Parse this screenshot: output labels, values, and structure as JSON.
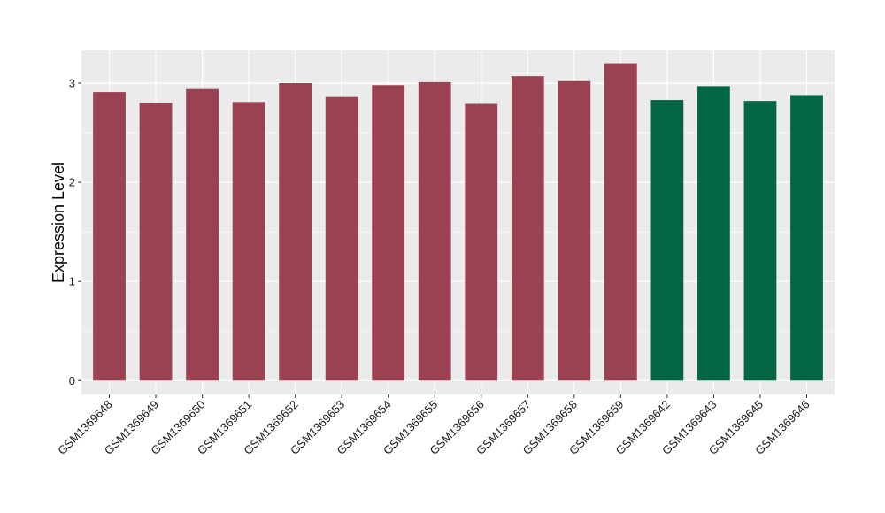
{
  "chart_data": {
    "type": "bar",
    "title": "",
    "xlabel": "",
    "ylabel": "Expression Level",
    "ylim": [
      -0.14,
      3.33
    ],
    "yticks": [
      0,
      1,
      2,
      3
    ],
    "grid": true,
    "legend": "none",
    "categories": [
      "GSM1369648",
      "GSM1369649",
      "GSM1369650",
      "GSM1369651",
      "GSM1369652",
      "GSM1369653",
      "GSM1369654",
      "GSM1369655",
      "GSM1369656",
      "GSM1369657",
      "GSM1369658",
      "GSM1369659",
      "GSM1369642",
      "GSM1369643",
      "GSM1369645",
      "GSM1369646"
    ],
    "values": [
      2.91,
      2.8,
      2.94,
      2.81,
      3.0,
      2.86,
      2.98,
      3.01,
      2.79,
      3.07,
      3.02,
      3.2,
      2.83,
      2.97,
      2.82,
      2.88
    ],
    "bar_colors": [
      "#9b4252",
      "#9b4252",
      "#9b4252",
      "#9b4252",
      "#9b4252",
      "#9b4252",
      "#9b4252",
      "#9b4252",
      "#9b4252",
      "#9b4252",
      "#9b4252",
      "#9b4252",
      "#006644",
      "#006644",
      "#006644",
      "#006644"
    ]
  },
  "colors": {
    "panel_background": "#ebebeb",
    "gridline": "#ffffff",
    "group_a": "#9b4252",
    "group_b": "#006644"
  }
}
